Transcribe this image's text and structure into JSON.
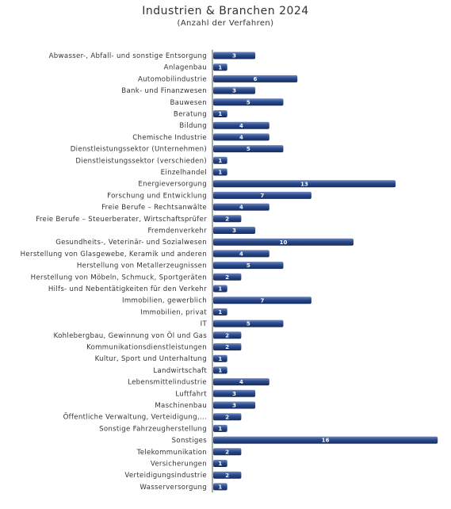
{
  "chart_data": {
    "type": "bar",
    "orientation": "horizontal",
    "title": "Industrien & Branchen 2024",
    "subtitle": "(Anzahl der Verfahren)",
    "categories": [
      "Abwasser-, Abfall- und sonstige Entsorgung",
      "Anlagenbau",
      "Automobilindustrie",
      "Bank- und Finanzwesen",
      "Bauwesen",
      "Beratung",
      "Bildung",
      "Chemische Industrie",
      "Dienstleistungssektor (Unternehmen)",
      "Dienstleistungssektor (verschieden)",
      "Einzelhandel",
      "Energieversorgung",
      "Forschung und Entwicklung",
      "Freie Berufe – Rechtsanwälte",
      "Freie Berufe – Steuerberater, Wirtschaftsprüfer",
      "Fremdenverkehr",
      "Gesundheits-, Veterinär- und Sozialwesen",
      "Herstellung von Glasgewebe, Keramik und anderen",
      "Herstellung von Metallerzeugnissen",
      "Herstellung von Möbeln, Schmuck, Sportgeräten",
      "Hilfs- und Nebentätigkeiten für den Verkehr",
      "Immobilien, gewerblich",
      "Immobilien, privat",
      "IT",
      "Kohlebergbau, Gewinnung von Öl und Gas",
      "Kommunikationsdienstleistungen",
      "Kultur, Sport und Unterhaltung",
      "Landwirtschaft",
      "Lebensmittelindustrie",
      "Luftfahrt",
      "Maschinenbau",
      "Öffentliche Verwaltung, Verteidigung,...",
      "Sonstige Fahrzeugherstellung",
      "Sonstiges",
      "Telekommunikation",
      "Versicherungen",
      "Verteidigungsindustrie",
      "Wasserversorgung"
    ],
    "values": [
      3,
      1,
      6,
      3,
      5,
      1,
      4,
      4,
      5,
      1,
      1,
      13,
      7,
      4,
      2,
      3,
      10,
      4,
      5,
      2,
      1,
      7,
      1,
      5,
      2,
      2,
      1,
      1,
      4,
      3,
      3,
      2,
      1,
      16,
      2,
      1,
      2,
      1
    ],
    "colors": {
      "bar_light": "#6d88c2",
      "bar_mid": "#2c4a8c",
      "bar_dark": "#142b5e",
      "axis": "#555555"
    },
    "grid": false,
    "legend": "none"
  }
}
